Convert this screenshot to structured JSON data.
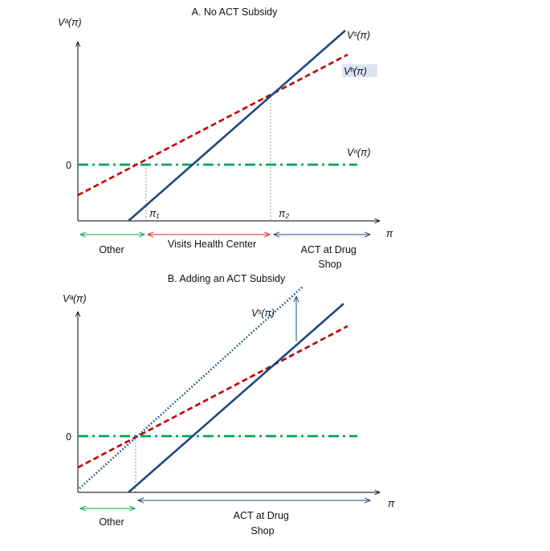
{
  "colors": {
    "supply_line": "#1F497D",
    "nonsub_line": "#C00000",
    "outside_line": "#00A650",
    "other_arrow": "#00A650",
    "health_center_arrow": "#E3262B",
    "drug_shop_arrow": "#1F497D",
    "axis": "#000000",
    "guide": "#7F7F7F"
  },
  "panel_a": {
    "title": "A. No ACT Subsidy",
    "y_axis_label": "Vᵃ(π)",
    "x_axis_label": "π",
    "zero_label": "0",
    "line_labels": {
      "drug_shop": "Vˢ(π)",
      "health_center": "Vʰ(π)",
      "other": "Vⁿ(π)"
    },
    "thresholds": [
      "π₁",
      "π₂"
    ],
    "regions": [
      "Other",
      "Visits Health Center",
      "ACT at Drug Shop"
    ]
  },
  "panel_b": {
    "title": "B. Adding an ACT Subsidy",
    "y_axis_label": "Vᵃ(π)",
    "x_axis_label": "π",
    "zero_label": "0",
    "line_labels": {
      "drug_shop_subsidized": "Vˢ(π)"
    },
    "regions": [
      "Other",
      "ACT  at Drug Shop"
    ]
  }
}
